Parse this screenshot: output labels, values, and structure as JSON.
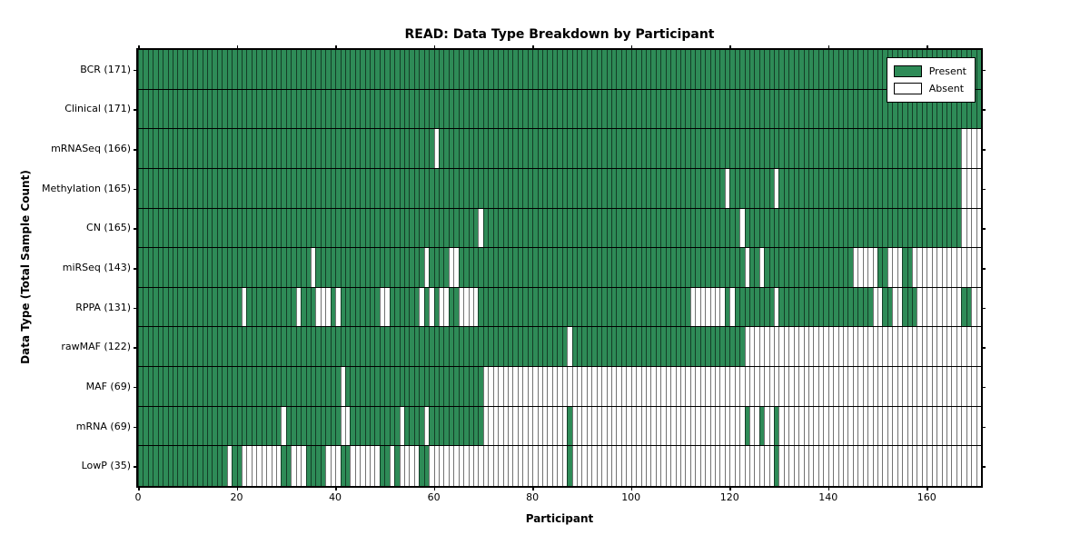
{
  "chart_data": {
    "type": "heatmap",
    "title": "READ: Data Type Breakdown by Participant",
    "xlabel": "Participant",
    "ylabel": "Data Type (Total Sample Count)",
    "x_ticks": [
      0,
      20,
      40,
      60,
      80,
      100,
      120,
      140,
      160
    ],
    "x_range": [
      0,
      171
    ],
    "n_participants": 171,
    "grid": "per-cell vertical gridlines, black row separators",
    "legend_position": "upper right",
    "legend": [
      {
        "label": "Present",
        "color": "#2e8b57"
      },
      {
        "label": "Absent",
        "color": "#ffffff"
      }
    ],
    "colors": {
      "present": "#2e8b57",
      "absent": "#ffffff",
      "gridline": "rgba(0,0,0,0.55)",
      "frame": "#000000"
    },
    "rows": [
      {
        "label": "BCR (171)",
        "name": "BCR",
        "count": 171,
        "absent": []
      },
      {
        "label": "Clinical (171)",
        "name": "Clinical",
        "count": 171,
        "absent": []
      },
      {
        "label": "mRNASeq (166)",
        "name": "mRNASeq",
        "count": 166,
        "absent": [
          60,
          "167-170"
        ]
      },
      {
        "label": "Methylation (165)",
        "name": "Methylation",
        "count": 165,
        "absent": [
          119,
          129,
          "167-170"
        ]
      },
      {
        "label": "CN (165)",
        "name": "CN",
        "count": 165,
        "absent": [
          69,
          122,
          "167-170"
        ]
      },
      {
        "label": "miRSeq (143)",
        "name": "miRSeq",
        "count": 143,
        "absent": [
          35,
          58,
          63,
          64,
          123,
          126,
          "145-149",
          "152-154",
          "157-170"
        ]
      },
      {
        "label": "RPPA (131)",
        "name": "RPPA",
        "count": 131,
        "absent": [
          21,
          32,
          "36-38",
          40,
          49,
          50,
          57,
          59,
          61,
          62,
          "65-68",
          "112-118",
          120,
          129,
          149,
          150,
          153,
          154,
          "158-166",
          169,
          170
        ]
      },
      {
        "label": "rawMAF (122)",
        "name": "rawMAF",
        "count": 122,
        "absent": [
          87,
          "123-170"
        ]
      },
      {
        "label": "MAF (69)",
        "name": "MAF",
        "count": 69,
        "absent": [
          41,
          "70-170"
        ]
      },
      {
        "label": "mRNA (69)",
        "name": "mRNA",
        "count": 69,
        "absent": [
          29,
          41,
          42,
          53,
          58,
          "70-86",
          "88-122",
          124,
          125,
          127,
          128,
          "130-170"
        ]
      },
      {
        "label": "LowP (35)",
        "name": "LowP",
        "count": 35,
        "absent": [
          18,
          "21-28",
          "31-33",
          "38-40",
          "43-48",
          51,
          "53-56",
          "59-86",
          "88-128",
          "130-170"
        ]
      }
    ]
  }
}
